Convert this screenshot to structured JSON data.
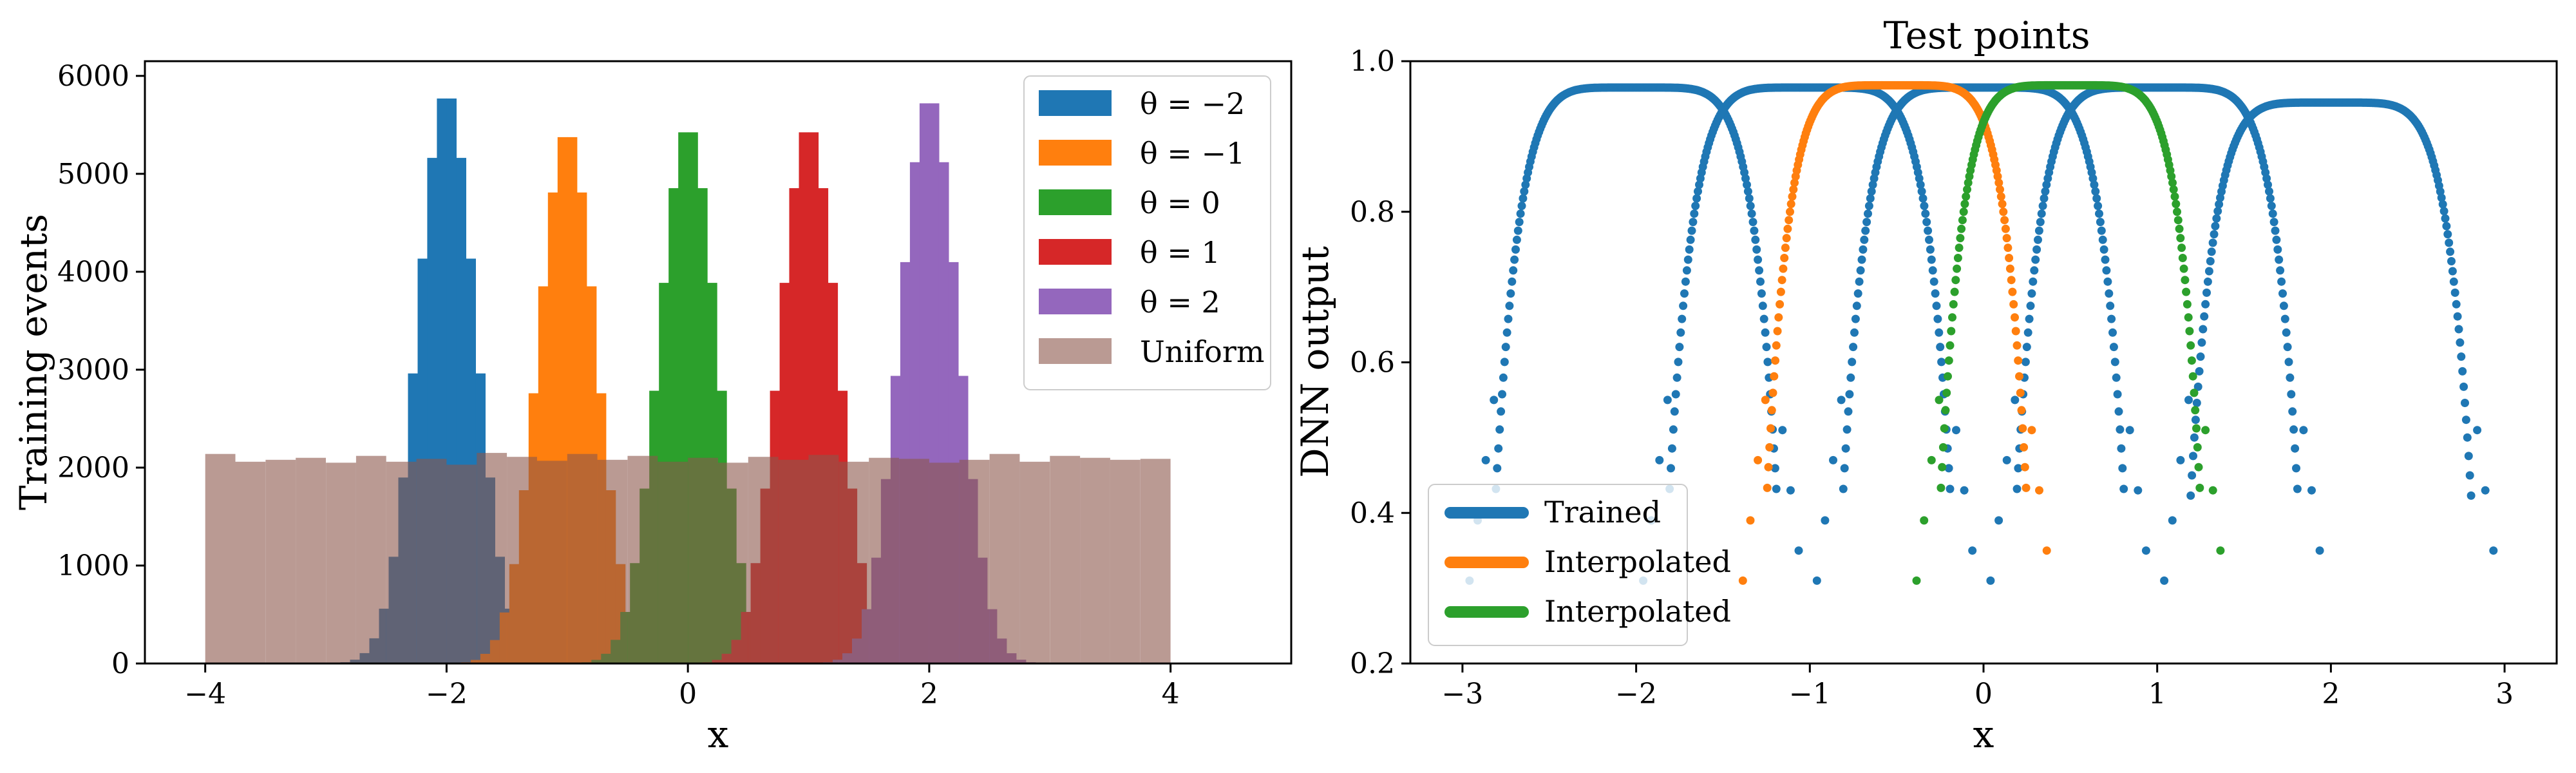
{
  "chart_data": [
    {
      "type": "histogram",
      "title": "",
      "xlabel": "x",
      "ylabel": "Training events",
      "xlim": [
        -4.5,
        5.0
      ],
      "ylim": [
        0,
        6150
      ],
      "xticks": [
        -4,
        -2,
        0,
        2,
        4
      ],
      "xtick_labels": [
        "−4",
        "−2",
        "0",
        "2",
        "4"
      ],
      "yticks": [
        0,
        1000,
        2000,
        3000,
        4000,
        5000,
        6000
      ],
      "ytick_labels": [
        "0",
        "1000",
        "2000",
        "3000",
        "4000",
        "5000",
        "6000"
      ],
      "bin_width": 0.08,
      "series": [
        {
          "name": "θ = −2",
          "mean": -2,
          "std": 0.24,
          "peak": 5850,
          "color": "#1f77b4",
          "opacity": 1.0
        },
        {
          "name": "θ = −1",
          "mean": -1,
          "std": 0.24,
          "peak": 5450,
          "color": "#ff7f0e",
          "opacity": 1.0
        },
        {
          "name": "θ = 0",
          "mean": 0,
          "std": 0.24,
          "peak": 5500,
          "color": "#2ca02c",
          "opacity": 1.0
        },
        {
          "name": "θ = 1",
          "mean": 1,
          "std": 0.24,
          "peak": 5500,
          "color": "#d62728",
          "opacity": 1.0
        },
        {
          "name": "θ = 2",
          "mean": 2,
          "std": 0.24,
          "peak": 5800,
          "color": "#9467bd",
          "opacity": 1.0
        }
      ],
      "uniform": {
        "name": "Uniform",
        "range": [
          -4,
          4
        ],
        "bin_width": 0.25,
        "values": [
          2140,
          2060,
          2080,
          2100,
          2050,
          2120,
          2060,
          2090,
          2030,
          2150,
          2110,
          2070,
          2140,
          2080,
          2120,
          2060,
          2100,
          2050,
          2110,
          2080,
          2130,
          2060,
          2100,
          2090,
          2050,
          2080,
          2140,
          2060,
          2120,
          2100,
          2080,
          2090
        ],
        "color": "#8c564b",
        "opacity": 0.6
      },
      "legend": {
        "placement": "top-right"
      }
    },
    {
      "type": "scatter",
      "title": "Test points",
      "xlabel": "x",
      "ylabel": "DNN output",
      "xlim": [
        -3.3,
        3.3
      ],
      "ylim": [
        0.2,
        1.0
      ],
      "xticks": [
        -3,
        -2,
        -1,
        0,
        1,
        2,
        3
      ],
      "xtick_labels": [
        "−3",
        "−2",
        "−1",
        "0",
        "1",
        "2",
        "3"
      ],
      "yticks": [
        0.2,
        0.4,
        0.6,
        0.8,
        1.0
      ],
      "ytick_labels": [
        "0.2",
        "0.4",
        "0.6",
        "0.8",
        "1.0"
      ],
      "series": [
        {
          "name": "Trained",
          "color": "#1f77b4",
          "curves": [
            {
              "center": -2,
              "height": 0.965,
              "half_width": 0.78
            },
            {
              "center": -1,
              "height": 0.965,
              "half_width": 0.78
            },
            {
              "center": 0,
              "height": 0.965,
              "half_width": 0.78
            },
            {
              "center": 1,
              "height": 0.965,
              "half_width": 0.78
            },
            {
              "center": 2,
              "height": 0.945,
              "half_width": 0.78
            }
          ]
        },
        {
          "name": "Interpolated",
          "color": "#ff7f0e",
          "curves": [
            {
              "center": -0.5,
              "height": 0.968,
              "half_width": 0.72
            }
          ]
        },
        {
          "name": "Interpolated",
          "color": "#2ca02c",
          "curves": [
            {
              "center": 0.5,
              "height": 0.968,
              "half_width": 0.72
            }
          ]
        }
      ],
      "legend": {
        "placement": "bottom-left"
      }
    }
  ]
}
